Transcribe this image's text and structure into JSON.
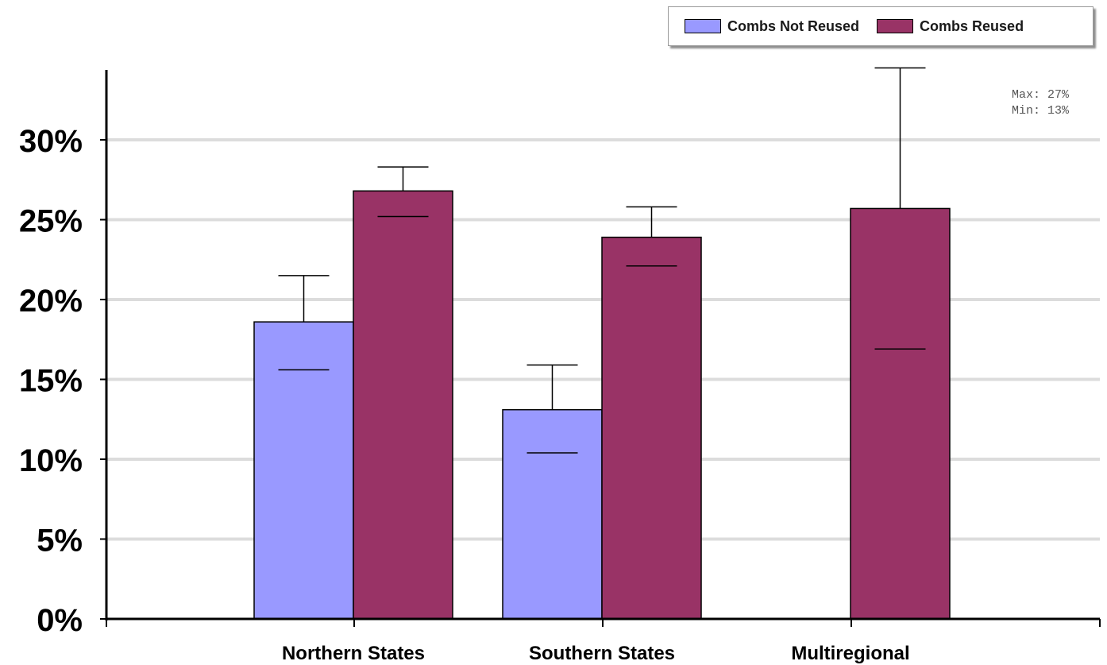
{
  "chart_data": {
    "type": "bar",
    "title": "",
    "xlabel": "",
    "ylabel": "",
    "ylim": [
      0,
      30
    ],
    "yticks": [
      "0%",
      "5%",
      "10%",
      "15%",
      "20%",
      "25%",
      "30%"
    ],
    "ytick_values": [
      0,
      5,
      10,
      15,
      20,
      25,
      30
    ],
    "grid": true,
    "legend_position": "top-right",
    "categories": [
      "Northern States",
      "Southern States",
      "Multiregional"
    ],
    "series": [
      {
        "name": "Combs Not Reused",
        "color": "#9999ff",
        "values": [
          18.6,
          13.1,
          null
        ],
        "error_high": [
          21.5,
          15.9,
          null
        ],
        "error_low": [
          15.6,
          10.4,
          null
        ]
      },
      {
        "name": "Combs Reused",
        "color": "#993366",
        "values": [
          26.8,
          23.9,
          25.7
        ],
        "error_high": [
          28.3,
          25.8,
          34.5
        ],
        "error_low": [
          25.2,
          22.1,
          16.9
        ]
      }
    ],
    "annotation": {
      "max_label": "Max: 27%",
      "min_label": "Min: 13%"
    }
  },
  "colors": {
    "grid": "#dcdcdc",
    "axis": "#000000",
    "bar_outline": "#000000"
  }
}
